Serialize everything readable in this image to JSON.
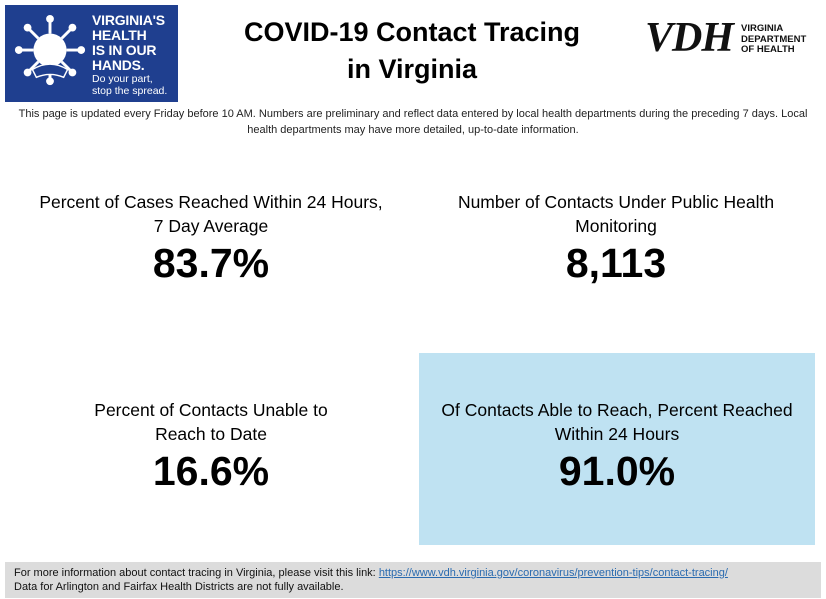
{
  "logo": {
    "lines": [
      "VIRGINIA'S",
      "HEALTH",
      "IS IN OUR",
      "HANDS."
    ],
    "tagline": [
      "Do your part,",
      "stop the spread."
    ],
    "background": "#1f3f8f"
  },
  "header": {
    "title_line1": "COVID-19 Contact Tracing",
    "title_line2": "in Virginia"
  },
  "agency_logo": {
    "letters": "VDH",
    "sub": [
      "VIRGINIA",
      "DEPARTMENT",
      "OF HEALTH"
    ]
  },
  "update_note": "This page is updated every Friday before 10 AM. Numbers are preliminary and reflect data entered by local health departments during the preceding 7 days. Local health departments may have more detailed, up-to-date information.",
  "metrics": [
    {
      "label_line1": "Percent of Cases Reached Within 24 Hours,",
      "label_line2": "7 Day Average",
      "value": "83.7%"
    },
    {
      "label_line1": "Number of Contacts Under Public Health",
      "label_line2": "Monitoring",
      "value": "8,113"
    },
    {
      "label_line1": "Percent of Contacts Unable to",
      "label_line2": "Reach to Date",
      "value": "16.6%"
    },
    {
      "label_line1": "Of Contacts Able to Reach, Percent Reached",
      "label_line2": "Within 24 Hours",
      "value": "91.0%"
    }
  ],
  "highlight_color": "#bfe2f2",
  "footer": {
    "prefix": "For more information about contact tracing in Virginia, please visit this link: ",
    "link": "https://www.vdh.virginia.gov/coronavirus/prevention-tips/contact-tracing/",
    "note": "Data for Arlington and Fairfax Health Districts are not fully available."
  }
}
